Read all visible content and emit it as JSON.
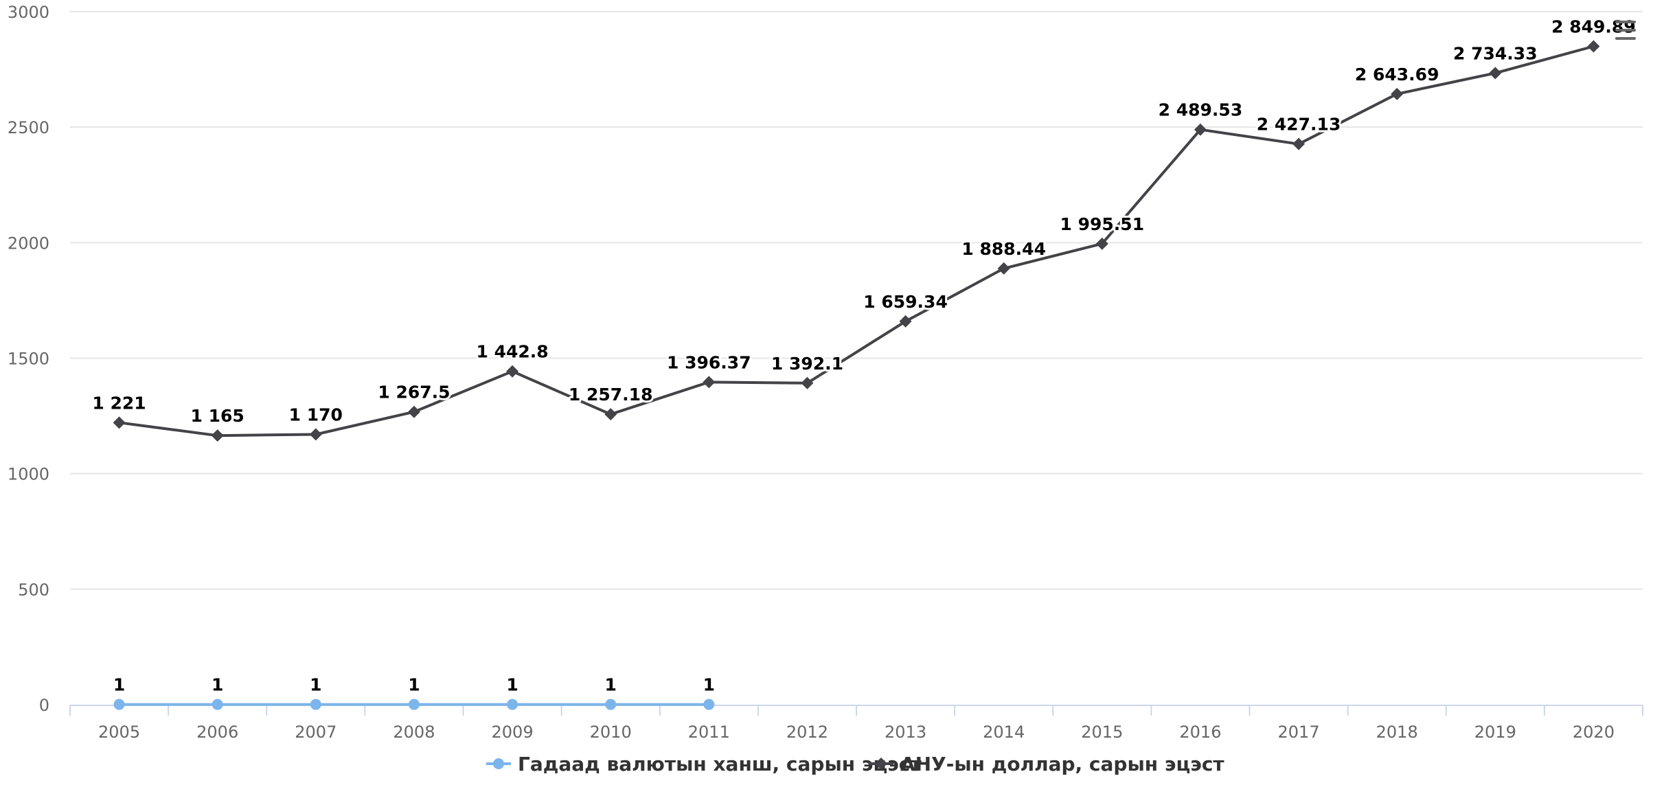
{
  "chart_data": {
    "type": "line",
    "title": "",
    "xlabel": "",
    "ylabel": "",
    "categories": [
      "2005",
      "2006",
      "2007",
      "2008",
      "2009",
      "2010",
      "2011",
      "2012",
      "2013",
      "2014",
      "2015",
      "2016",
      "2017",
      "2018",
      "2019",
      "2020"
    ],
    "ylim": [
      0,
      3000
    ],
    "yticks": [
      0,
      500,
      1000,
      1500,
      2000,
      2500,
      3000
    ],
    "grid": true,
    "legend_position": "bottom-center",
    "series": [
      {
        "name": "Гадаад валютын ханш, сарын эцэст",
        "color": "#7cb5ec",
        "marker": "circle",
        "values": [
          1,
          1,
          1,
          1,
          1,
          1,
          1,
          null,
          null,
          null,
          null,
          null,
          null,
          null,
          null,
          null
        ],
        "labels": [
          "1",
          "1",
          "1",
          "1",
          "1",
          "1",
          "1",
          "",
          "",
          "",
          "",
          "",
          "",
          "",
          "",
          ""
        ]
      },
      {
        "name": "АНУ-ын доллар, сарын эцэст",
        "color": "#434348",
        "marker": "diamond",
        "values": [
          1221,
          1165,
          1170,
          1267.5,
          1442.8,
          1257.18,
          1396.37,
          1392.1,
          1659.34,
          1888.44,
          1995.51,
          2489.53,
          2427.13,
          2643.69,
          2734.33,
          2849.89
        ],
        "labels": [
          "1 221",
          "1 165",
          "1 170",
          "1 267.5",
          "1 442.8",
          "1 257.18",
          "1 396.37",
          "1 392.1",
          "1 659.34",
          "1 888.44",
          "1 995.51",
          "2 489.53",
          "2 427.13",
          "2 643.69",
          "2 734.33",
          "2 849.89"
        ]
      }
    ]
  },
  "colors": {
    "grid": "#e6e6e6",
    "axis": "#ccd6eb",
    "tick_text": "#666666",
    "menu_icon": "#666666"
  },
  "icons": {
    "menu": "hamburger-menu-icon"
  }
}
